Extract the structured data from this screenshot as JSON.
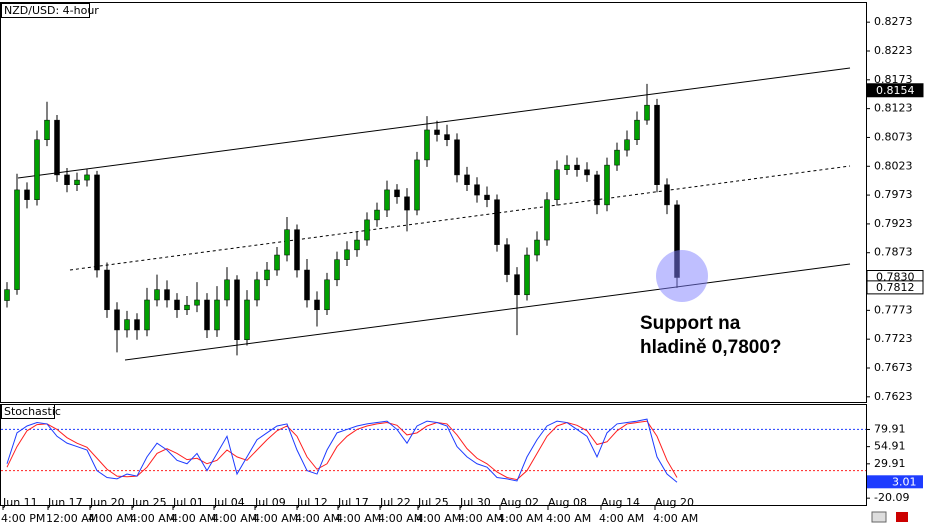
{
  "chart_data": [
    {
      "type": "candlestick",
      "title": "NZD/USD: 4-hour",
      "open": [
        0.779,
        0.7809,
        0.7982,
        0.7965,
        0.8069,
        0.8103,
        0.8008,
        0.7991,
        0.7999,
        0.8008,
        0.7843,
        0.7774,
        0.7739,
        0.7757,
        0.7739,
        0.7791,
        0.7809,
        0.7791,
        0.7774,
        0.7782,
        0.7791,
        0.7739,
        0.7791,
        0.7826,
        0.7722,
        0.7791,
        0.7826,
        0.7843,
        0.7869,
        0.7913,
        0.7843,
        0.7791,
        0.7774,
        0.7826,
        0.7861,
        0.7878,
        0.7895,
        0.793,
        0.7947,
        0.7982,
        0.797,
        0.7947,
        0.8034,
        0.8086,
        0.8078,
        0.8069,
        0.8008,
        0.7991,
        0.7973,
        0.7965,
        0.7887,
        0.7835,
        0.78,
        0.7869,
        0.7895,
        0.7965,
        0.8017,
        0.8025,
        0.8017,
        0.8008,
        0.7956,
        0.8025,
        0.8051,
        0.8069,
        0.8103,
        0.8129,
        0.7991,
        0.7956
      ],
      "high": [
        0.7822,
        0.801,
        0.7995,
        0.8085,
        0.8135,
        0.8112,
        0.802,
        0.8012,
        0.8018,
        0.8015,
        0.7856,
        0.7787,
        0.7772,
        0.7768,
        0.7812,
        0.7835,
        0.7825,
        0.7803,
        0.7798,
        0.7822,
        0.7803,
        0.7815,
        0.7848,
        0.7834,
        0.7808,
        0.784,
        0.7857,
        0.7883,
        0.7935,
        0.7922,
        0.7862,
        0.7806,
        0.7838,
        0.7875,
        0.7893,
        0.791,
        0.7943,
        0.796,
        0.7998,
        0.7992,
        0.7985,
        0.8048,
        0.811,
        0.8102,
        0.8095,
        0.808,
        0.8022,
        0.8004,
        0.7988,
        0.7974,
        0.7898,
        0.7848,
        0.7882,
        0.791,
        0.7978,
        0.8033,
        0.8042,
        0.8038,
        0.803,
        0.8015,
        0.8038,
        0.8064,
        0.8085,
        0.8118,
        0.8166,
        0.814,
        0.8002,
        0.7964
      ],
      "low": [
        0.7778,
        0.78,
        0.795,
        0.7955,
        0.8058,
        0.7996,
        0.7978,
        0.798,
        0.7988,
        0.783,
        0.776,
        0.77,
        0.7726,
        0.7722,
        0.7728,
        0.778,
        0.7778,
        0.776,
        0.7765,
        0.777,
        0.7725,
        0.7727,
        0.778,
        0.7695,
        0.7712,
        0.778,
        0.7815,
        0.7833,
        0.7858,
        0.783,
        0.7778,
        0.7745,
        0.7765,
        0.7815,
        0.785,
        0.7866,
        0.7885,
        0.7918,
        0.7935,
        0.7958,
        0.791,
        0.7938,
        0.8022,
        0.8066,
        0.8058,
        0.7995,
        0.798,
        0.796,
        0.7952,
        0.7875,
        0.7822,
        0.773,
        0.779,
        0.7858,
        0.7885,
        0.7955,
        0.8008,
        0.8005,
        0.7996,
        0.794,
        0.7945,
        0.8015,
        0.804,
        0.806,
        0.8095,
        0.7978,
        0.794,
        0.7812
      ],
      "close": [
        0.7809,
        0.7982,
        0.7965,
        0.8069,
        0.8103,
        0.8008,
        0.7991,
        0.7999,
        0.8008,
        0.7843,
        0.7774,
        0.7739,
        0.7757,
        0.7739,
        0.7791,
        0.7809,
        0.7791,
        0.7774,
        0.7782,
        0.7791,
        0.7739,
        0.7791,
        0.7826,
        0.7722,
        0.7791,
        0.7826,
        0.7843,
        0.7869,
        0.7913,
        0.7843,
        0.7791,
        0.7774,
        0.7826,
        0.7861,
        0.7878,
        0.7895,
        0.793,
        0.7947,
        0.7982,
        0.797,
        0.7947,
        0.8034,
        0.8086,
        0.8078,
        0.8069,
        0.8008,
        0.7991,
        0.7973,
        0.7965,
        0.7887,
        0.7835,
        0.78,
        0.7869,
        0.7895,
        0.7965,
        0.8017,
        0.8025,
        0.8017,
        0.8008,
        0.7956,
        0.8025,
        0.8051,
        0.8069,
        0.8103,
        0.8129,
        0.7991,
        0.7956,
        0.783
      ],
      "up_color": "#00a000",
      "down_color": "#000000",
      "ylim": [
        0.7614,
        0.8308
      ],
      "yticks": [
        0.8273,
        0.8223,
        0.8173,
        0.8123,
        0.8073,
        0.8023,
        0.7973,
        0.7923,
        0.7873,
        0.7773,
        0.7723,
        0.7673,
        0.7623
      ],
      "price_markers": [
        {
          "value": 0.8154,
          "label": "0.8154"
        },
        {
          "value": 0.783,
          "label": "0.7830"
        },
        {
          "value": 0.7812,
          "label": "0.7812"
        }
      ],
      "annotation": [
        "Support na",
        "hladině 0,7800?"
      ]
    },
    {
      "type": "line",
      "title": "Stochastic",
      "series": [
        {
          "color": "#1e3cff",
          "values": [
            30,
            75,
            85,
            90,
            88,
            70,
            60,
            55,
            50,
            20,
            10,
            8,
            15,
            12,
            40,
            60,
            50,
            35,
            30,
            45,
            20,
            45,
            70,
            15,
            40,
            65,
            75,
            85,
            88,
            50,
            20,
            15,
            50,
            75,
            80,
            85,
            88,
            90,
            92,
            80,
            60,
            85,
            92,
            90,
            85,
            55,
            40,
            30,
            25,
            10,
            8,
            5,
            40,
            65,
            85,
            92,
            90,
            80,
            70,
            40,
            75,
            88,
            90,
            92,
            95,
            40,
            15,
            3.01
          ]
        },
        {
          "color": "#ff2020",
          "values": [
            25,
            55,
            78,
            87,
            88,
            80,
            68,
            60,
            54,
            38,
            22,
            12,
            11,
            12,
            25,
            45,
            52,
            45,
            36,
            38,
            30,
            35,
            50,
            40,
            35,
            50,
            65,
            78,
            85,
            70,
            40,
            22,
            30,
            55,
            70,
            80,
            85,
            88,
            90,
            86,
            72,
            75,
            85,
            90,
            88,
            72,
            52,
            38,
            30,
            18,
            10,
            7,
            20,
            45,
            70,
            85,
            90,
            86,
            78,
            58,
            62,
            78,
            88,
            90,
            92,
            70,
            35,
            10
          ]
        }
      ],
      "levels": [
        80,
        20
      ],
      "ylim": [
        -31.5,
        117
      ],
      "yticks": [
        79.91,
        54.91,
        29.91,
        -20.09
      ],
      "x_labels": [
        {
          "date": "Jun 11",
          "time": "4:00 PM"
        },
        {
          "date": "Jun 17",
          "time": "12:00 AM"
        },
        {
          "date": "Jun 20",
          "time": "4:00 AM"
        },
        {
          "date": "Jun 25",
          "time": "4:00 AM"
        },
        {
          "date": "Jul 01",
          "time": "4:00 AM"
        },
        {
          "date": "Jul 04",
          "time": "4:00 AM"
        },
        {
          "date": "Jul 09",
          "time": "4:00 AM"
        },
        {
          "date": "Jul 12",
          "time": "4:00 AM"
        },
        {
          "date": "Jul 17",
          "time": "4:00 AM"
        },
        {
          "date": "Jul 22",
          "time": "4:00 AM"
        },
        {
          "date": "Jul 25",
          "time": "4:00 AM"
        },
        {
          "date": "Jul 30",
          "time": "4:00 AM"
        },
        {
          "date": "Aug 02",
          "time": "4:00 AM"
        },
        {
          "date": "Aug 08",
          "time": "4:00 AM"
        },
        {
          "date": "Aug 14",
          "time": "4:00 AM"
        },
        {
          "date": "Aug 20",
          "time": "4:00 AM"
        }
      ]
    }
  ]
}
